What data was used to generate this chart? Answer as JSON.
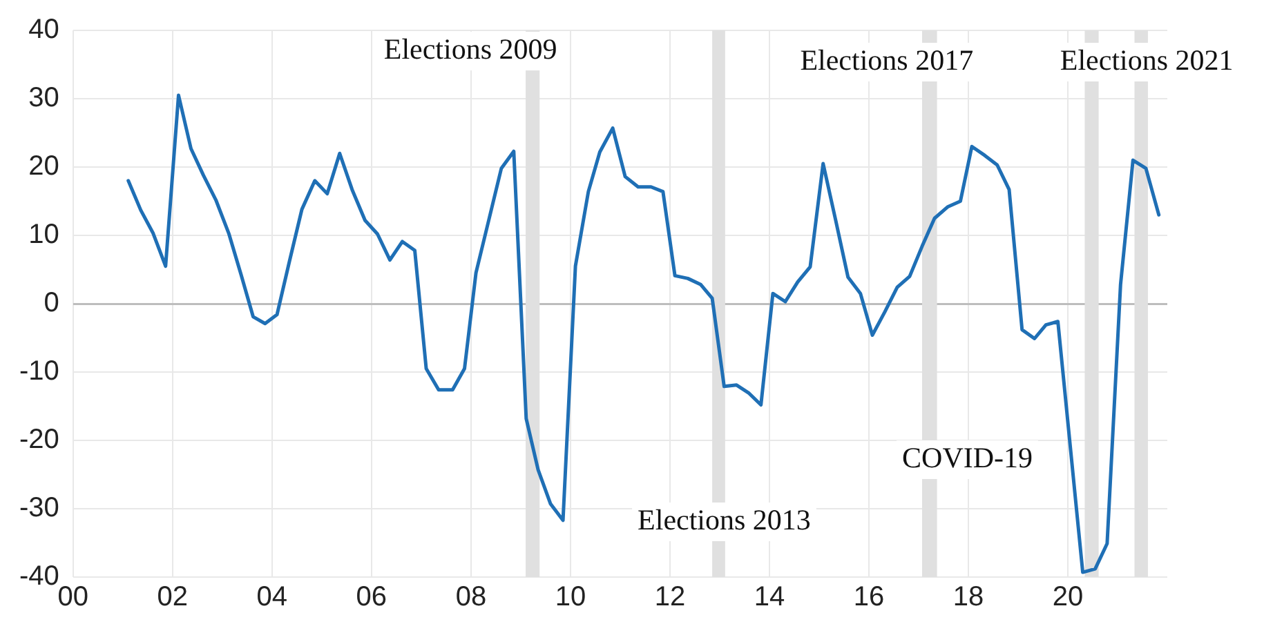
{
  "chart_data": {
    "type": "line",
    "x": [
      2001.11,
      2001.36,
      2001.61,
      2001.86,
      2002.12,
      2002.37,
      2002.62,
      2002.87,
      2003.13,
      2003.38,
      2003.62,
      2003.86,
      2004.1,
      2004.35,
      2004.6,
      2004.86,
      2005.11,
      2005.36,
      2005.61,
      2005.87,
      2006.12,
      2006.37,
      2006.62,
      2006.87,
      2007.1,
      2007.35,
      2007.63,
      2007.87,
      2008.1,
      2008.36,
      2008.61,
      2008.86,
      2009.11,
      2009.35,
      2009.6,
      2009.85,
      2010.1,
      2010.36,
      2010.59,
      2010.85,
      2011.1,
      2011.36,
      2011.62,
      2011.86,
      2012.1,
      2012.36,
      2012.62,
      2012.85,
      2013.09,
      2013.34,
      2013.59,
      2013.83,
      2014.07,
      2014.32,
      2014.57,
      2014.82,
      2015.08,
      2015.33,
      2015.58,
      2015.83,
      2016.07,
      2016.32,
      2016.57,
      2016.82,
      2017.07,
      2017.32,
      2017.59,
      2017.84,
      2018.07,
      2018.33,
      2018.58,
      2018.82,
      2019.08,
      2019.33,
      2019.56,
      2019.8,
      2020.3,
      2020.55,
      2020.79,
      2021.06,
      2021.31,
      2021.57,
      2021.83
    ],
    "series": [
      {
        "color": "#1f6fb5",
        "values": [
          18,
          13.7,
          10.3,
          5.5,
          30.5,
          22.7,
          18.8,
          15.2,
          10.3,
          4.2,
          -1.9,
          -2.9,
          -1.6,
          6.2,
          13.8,
          18,
          16.1,
          22,
          16.7,
          12.2,
          10.2,
          6.4,
          9.1,
          7.8,
          -9.5,
          -12.6,
          -12.6,
          -9.5,
          4.5,
          12.3,
          19.8,
          22.3,
          -16.8,
          -24.3,
          -29.3,
          -31.7,
          5.5,
          16.4,
          22.2,
          25.7,
          18.6,
          17.1,
          17.1,
          16.4,
          4.1,
          3.7,
          2.8,
          0.8,
          -12.1,
          -11.9,
          -13.1,
          -14.8,
          1.5,
          0.3,
          3.2,
          5.4,
          20.5,
          12.3,
          3.9,
          1.5,
          -4.6,
          -1.2,
          2.4,
          4,
          8.4,
          12.5,
          14.2,
          15,
          23,
          21.7,
          20.3,
          16.7,
          -3.8,
          -5.1,
          -3.1,
          -2.6,
          -39.3,
          -38.8,
          -35.1,
          2.8,
          21,
          19.8,
          13
        ]
      }
    ],
    "xlim": [
      2000,
      2022
    ],
    "xticks": [
      {
        "value": 2000,
        "label": "00"
      },
      {
        "value": 2002,
        "label": "02"
      },
      {
        "value": 2004,
        "label": "04"
      },
      {
        "value": 2006,
        "label": "06"
      },
      {
        "value": 2008,
        "label": "08"
      },
      {
        "value": 2010,
        "label": "10"
      },
      {
        "value": 2012,
        "label": "12"
      },
      {
        "value": 2014,
        "label": "14"
      },
      {
        "value": 2016,
        "label": "16"
      },
      {
        "value": 2018,
        "label": "18"
      },
      {
        "value": 2020,
        "label": "20"
      }
    ],
    "ylim": [
      -40,
      40
    ],
    "yticks": [
      -40,
      -30,
      -20,
      -10,
      0,
      10,
      20,
      30,
      40
    ],
    "bands": [
      {
        "axis": "x",
        "from": 2009.1,
        "to": 2009.38,
        "label": "Elections 2009",
        "color": "#e0e0e0"
      },
      {
        "axis": "x",
        "from": 2012.85,
        "to": 2013.11,
        "label": "Elections 2013",
        "color": "#e0e0e0"
      },
      {
        "axis": "x",
        "from": 2017.07,
        "to": 2017.37,
        "label": "Elections 2017",
        "color": "#e0e0e0"
      },
      {
        "axis": "x",
        "from": 2020.34,
        "to": 2020.62,
        "label": "COVID-19",
        "color": "#e0e0e0"
      },
      {
        "axis": "x",
        "from": 2021.34,
        "to": 2021.61,
        "label": "Elections 2021",
        "color": "#e0e0e0"
      }
    ],
    "grid": true,
    "legend": false,
    "marker": "none",
    "line_style": "solid"
  }
}
